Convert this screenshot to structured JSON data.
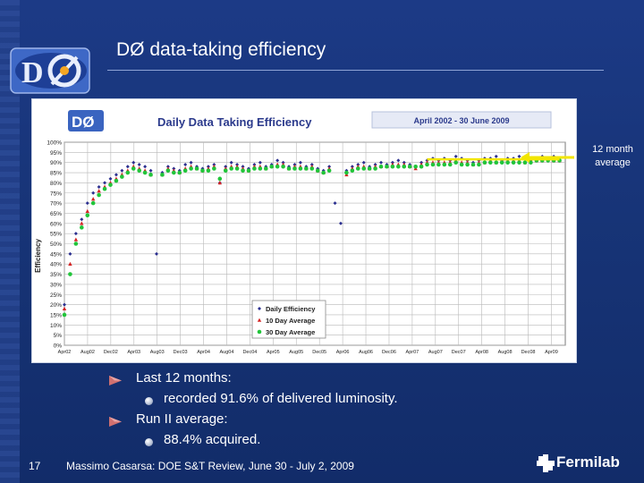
{
  "slide": {
    "title": "DØ data-taking efficiency",
    "annotation": "12 month average",
    "page_number": "17",
    "footer": "Massimo Casarsa: DOE S&T Review, June 30 - July 2, 2009",
    "fermilab_label": "Fermilab",
    "bullets": [
      {
        "level": 1,
        "text": "Last 12 months:"
      },
      {
        "level": 2,
        "text": "recorded 91.6% of delivered luminosity."
      },
      {
        "level": 1,
        "text": "Run II average:"
      },
      {
        "level": 2,
        "text": "88.4% acquired."
      }
    ],
    "colors": {
      "background": "#173477",
      "annotation_arrow": "#f2e600"
    },
    "icons": [
      "do-logo-icon",
      "fermilab-logo-icon",
      "bullet-arrow-icon",
      "bullet-dot-icon"
    ]
  },
  "chart_data": {
    "type": "scatter",
    "title": "Daily Data Taking Efficiency",
    "subtitle": "April 2002 - 30 June 2009",
    "logo_text": "DØ",
    "ylabel": "Efficiency",
    "ylim": [
      0,
      100
    ],
    "y_ticks": [
      "0%",
      "5%",
      "10%",
      "15%",
      "20%",
      "25%",
      "30%",
      "35%",
      "40%",
      "45%",
      "50%",
      "55%",
      "60%",
      "65%",
      "70%",
      "75%",
      "80%",
      "85%",
      "90%",
      "95%",
      "100%"
    ],
    "x_ticks": [
      "Apr02",
      "Aug02",
      "Dec02",
      "Apr03",
      "Aug03",
      "Dec03",
      "Apr04",
      "Aug04",
      "Dec04",
      "Apr05",
      "Aug05",
      "Dec05",
      "Apr06",
      "Aug06",
      "Dec06",
      "Apr07",
      "Aug07",
      "Dec07",
      "Apr08",
      "Aug08",
      "Dec08",
      "Apr09"
    ],
    "x_range": [
      "2002-04",
      "2009-07"
    ],
    "grid": true,
    "legend_position": "bottom-center",
    "series": [
      {
        "name": "Daily Efficiency",
        "color": "#2b2f8f",
        "marker": "diamond",
        "x": [
          "2002-04",
          "2002-05",
          "2002-06",
          "2002-07",
          "2002-08",
          "2002-09",
          "2002-10",
          "2002-11",
          "2002-12",
          "2003-01",
          "2003-02",
          "2003-03",
          "2003-04",
          "2003-05",
          "2003-06",
          "2003-07",
          "2003-08",
          "2003-09",
          "2003-10",
          "2003-11",
          "2003-12",
          "2004-01",
          "2004-02",
          "2004-03",
          "2004-04",
          "2004-05",
          "2004-06",
          "2004-07",
          "2004-08",
          "2004-09",
          "2004-10",
          "2004-11",
          "2004-12",
          "2005-01",
          "2005-02",
          "2005-03",
          "2005-04",
          "2005-05",
          "2005-06",
          "2005-07",
          "2005-08",
          "2005-09",
          "2005-10",
          "2005-11",
          "2005-12",
          "2006-01",
          "2006-02",
          "2006-03",
          "2006-04",
          "2006-05",
          "2006-06",
          "2006-07",
          "2006-08",
          "2006-09",
          "2006-10",
          "2006-11",
          "2006-12",
          "2007-01",
          "2007-02",
          "2007-03",
          "2007-04",
          "2007-05",
          "2007-06",
          "2007-07",
          "2007-08",
          "2007-09",
          "2007-10",
          "2007-11",
          "2007-12",
          "2008-01",
          "2008-02",
          "2008-03",
          "2008-04",
          "2008-05",
          "2008-06",
          "2008-07",
          "2008-08",
          "2008-09",
          "2008-10",
          "2008-11",
          "2008-12",
          "2009-01",
          "2009-02",
          "2009-03",
          "2009-04",
          "2009-05",
          "2009-06"
        ],
        "y": [
          20,
          45,
          55,
          62,
          70,
          75,
          78,
          80,
          82,
          84,
          86,
          88,
          90,
          89,
          88,
          86,
          45,
          85,
          88,
          87,
          86,
          89,
          90,
          88,
          87,
          88,
          89,
          80,
          88,
          90,
          89,
          88,
          87,
          89,
          90,
          88,
          89,
          91,
          90,
          88,
          89,
          90,
          88,
          89,
          87,
          86,
          88,
          70,
          60,
          86,
          88,
          89,
          90,
          88,
          89,
          90,
          89,
          90,
          91,
          90,
          89,
          88,
          90,
          91,
          92,
          91,
          92,
          91,
          93,
          92,
          91,
          90,
          91,
          92,
          92,
          93,
          91,
          92,
          92,
          93,
          92,
          91,
          92,
          93,
          92,
          93,
          92
        ]
      },
      {
        "name": "10 Day Average",
        "color": "#d42424",
        "marker": "triangle",
        "x": [
          "2002-04",
          "2002-05",
          "2002-06",
          "2002-07",
          "2002-08",
          "2002-09",
          "2002-10",
          "2002-11",
          "2002-12",
          "2003-01",
          "2003-02",
          "2003-03",
          "2003-04",
          "2003-05",
          "2003-06",
          "2003-07",
          "2003-09",
          "2003-10",
          "2003-11",
          "2003-12",
          "2004-01",
          "2004-02",
          "2004-03",
          "2004-04",
          "2004-05",
          "2004-06",
          "2004-07",
          "2004-08",
          "2004-09",
          "2004-10",
          "2004-11",
          "2004-12",
          "2005-01",
          "2005-02",
          "2005-03",
          "2005-04",
          "2005-05",
          "2005-06",
          "2005-07",
          "2005-08",
          "2005-09",
          "2005-10",
          "2005-11",
          "2005-12",
          "2006-01",
          "2006-02",
          "2006-05",
          "2006-06",
          "2006-07",
          "2006-08",
          "2006-09",
          "2006-10",
          "2006-11",
          "2006-12",
          "2007-01",
          "2007-02",
          "2007-03",
          "2007-04",
          "2007-05",
          "2007-06",
          "2007-07",
          "2007-08",
          "2007-09",
          "2007-10",
          "2007-11",
          "2007-12",
          "2008-01",
          "2008-02",
          "2008-03",
          "2008-04",
          "2008-05",
          "2008-06",
          "2008-07",
          "2008-08",
          "2008-09",
          "2008-10",
          "2008-11",
          "2008-12",
          "2009-01",
          "2009-02",
          "2009-03",
          "2009-04",
          "2009-05",
          "2009-06"
        ],
        "y": [
          18,
          40,
          52,
          60,
          66,
          72,
          76,
          78,
          80,
          82,
          84,
          86,
          88,
          87,
          86,
          84,
          84,
          87,
          86,
          85,
          87,
          88,
          87,
          86,
          87,
          88,
          80,
          87,
          88,
          88,
          87,
          86,
          88,
          88,
          87,
          88,
          89,
          89,
          87,
          88,
          88,
          87,
          88,
          86,
          85,
          87,
          84,
          87,
          88,
          88,
          87,
          88,
          88,
          88,
          89,
          89,
          89,
          88,
          87,
          89,
          90,
          90,
          90,
          90,
          90,
          91,
          90,
          90,
          89,
          90,
          90,
          91,
          90,
          91,
          91,
          91,
          91,
          90,
          91,
          91,
          91,
          92,
          91,
          91
        ]
      },
      {
        "name": "30 Day Average",
        "color": "#21c53a",
        "marker": "circle",
        "x": [
          "2002-04",
          "2002-05",
          "2002-06",
          "2002-07",
          "2002-08",
          "2002-09",
          "2002-10",
          "2002-11",
          "2002-12",
          "2003-01",
          "2003-02",
          "2003-03",
          "2003-04",
          "2003-05",
          "2003-06",
          "2003-07",
          "2003-09",
          "2003-10",
          "2003-11",
          "2003-12",
          "2004-01",
          "2004-02",
          "2004-03",
          "2004-04",
          "2004-05",
          "2004-06",
          "2004-07",
          "2004-08",
          "2004-09",
          "2004-10",
          "2004-11",
          "2004-12",
          "2005-01",
          "2005-02",
          "2005-03",
          "2005-04",
          "2005-05",
          "2005-06",
          "2005-07",
          "2005-08",
          "2005-09",
          "2005-10",
          "2005-11",
          "2005-12",
          "2006-01",
          "2006-02",
          "2006-05",
          "2006-06",
          "2006-07",
          "2006-08",
          "2006-09",
          "2006-10",
          "2006-11",
          "2006-12",
          "2007-01",
          "2007-02",
          "2007-03",
          "2007-04",
          "2007-05",
          "2007-06",
          "2007-07",
          "2007-08",
          "2007-09",
          "2007-10",
          "2007-11",
          "2007-12",
          "2008-01",
          "2008-02",
          "2008-03",
          "2008-04",
          "2008-05",
          "2008-06",
          "2008-07",
          "2008-08",
          "2008-09",
          "2008-10",
          "2008-11",
          "2008-12",
          "2009-01",
          "2009-02",
          "2009-03",
          "2009-04",
          "2009-05",
          "2009-06"
        ],
        "y": [
          15,
          35,
          50,
          58,
          64,
          70,
          74,
          77,
          79,
          81,
          83,
          85,
          87,
          86,
          85,
          84,
          84,
          86,
          85,
          85,
          86,
          87,
          87,
          86,
          86,
          87,
          82,
          86,
          87,
          87,
          86,
          86,
          87,
          87,
          87,
          88,
          88,
          88,
          87,
          87,
          87,
          87,
          87,
          86,
          85,
          86,
          85,
          86,
          87,
          87,
          87,
          87,
          88,
          88,
          88,
          88,
          88,
          88,
          88,
          88,
          89,
          89,
          89,
          89,
          89,
          90,
          89,
          89,
          89,
          89,
          90,
          90,
          90,
          90,
          90,
          90,
          90,
          90,
          90,
          91,
          91,
          91,
          91,
          91
        ]
      }
    ],
    "twelve_month_average": 91.6
  }
}
